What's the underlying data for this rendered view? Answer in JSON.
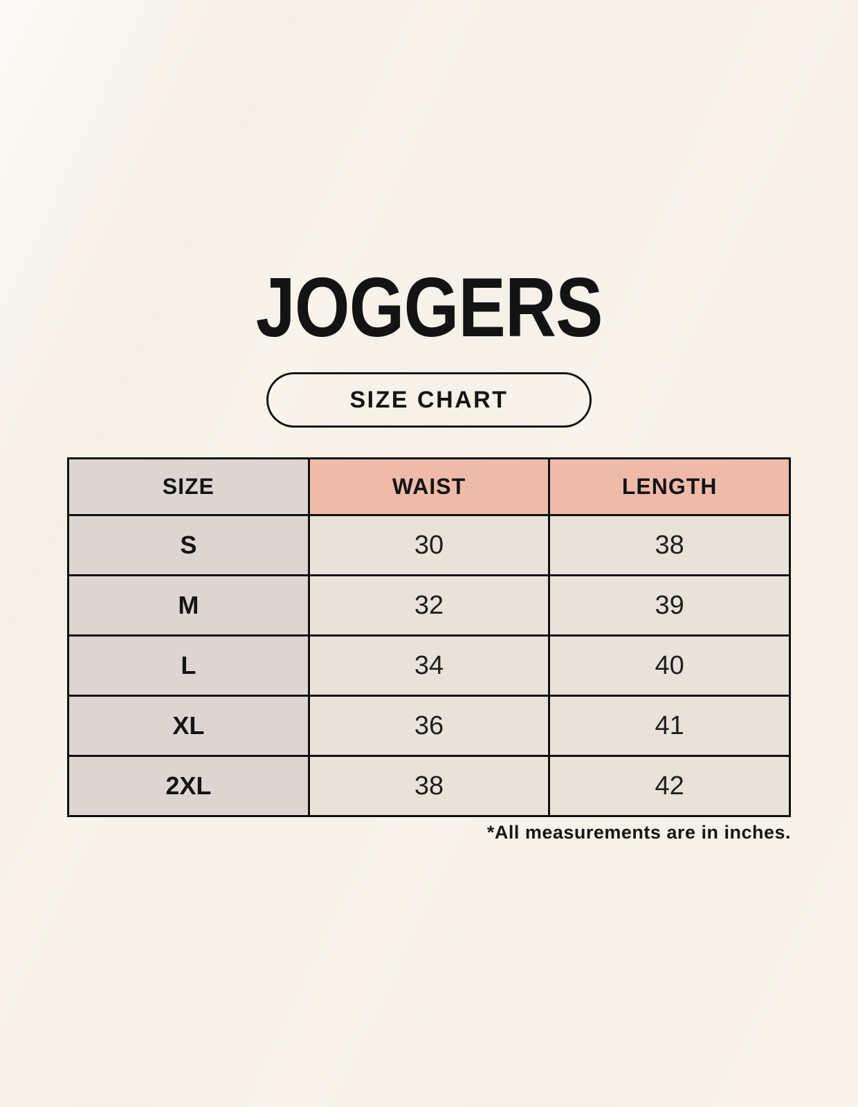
{
  "page": {
    "product_title": "JOGGERS",
    "badge_label": "SIZE CHART",
    "footnote": "*All measurements are in inches."
  },
  "table": {
    "headers": [
      "SIZE",
      "WAIST",
      "LENGTH"
    ],
    "rows": [
      {
        "size": "S",
        "waist": "30",
        "length": "38"
      },
      {
        "size": "M",
        "waist": "32",
        "length": "39"
      },
      {
        "size": "L",
        "waist": "34",
        "length": "40"
      },
      {
        "size": "XL",
        "waist": "36",
        "length": "41"
      },
      {
        "size": "2XL",
        "waist": "38",
        "length": "42"
      }
    ]
  },
  "chart_data": {
    "type": "table",
    "title": "JOGGERS",
    "subtitle": "SIZE CHART",
    "columns": [
      "SIZE",
      "WAIST",
      "LENGTH"
    ],
    "rows": [
      [
        "S",
        30,
        38
      ],
      [
        "M",
        32,
        39
      ],
      [
        "L",
        34,
        40
      ],
      [
        "XL",
        36,
        41
      ],
      [
        "2XL",
        38,
        42
      ]
    ],
    "units": "inches",
    "note": "*All measurements are in inches."
  },
  "colors": {
    "background": "#f8f4ec",
    "table_border": "#101010",
    "size_column_bg": "#ddd5d1",
    "measure_header_bg": "#eebbab",
    "data_cell_bg": "#e9e2d8",
    "text": "#141414"
  }
}
